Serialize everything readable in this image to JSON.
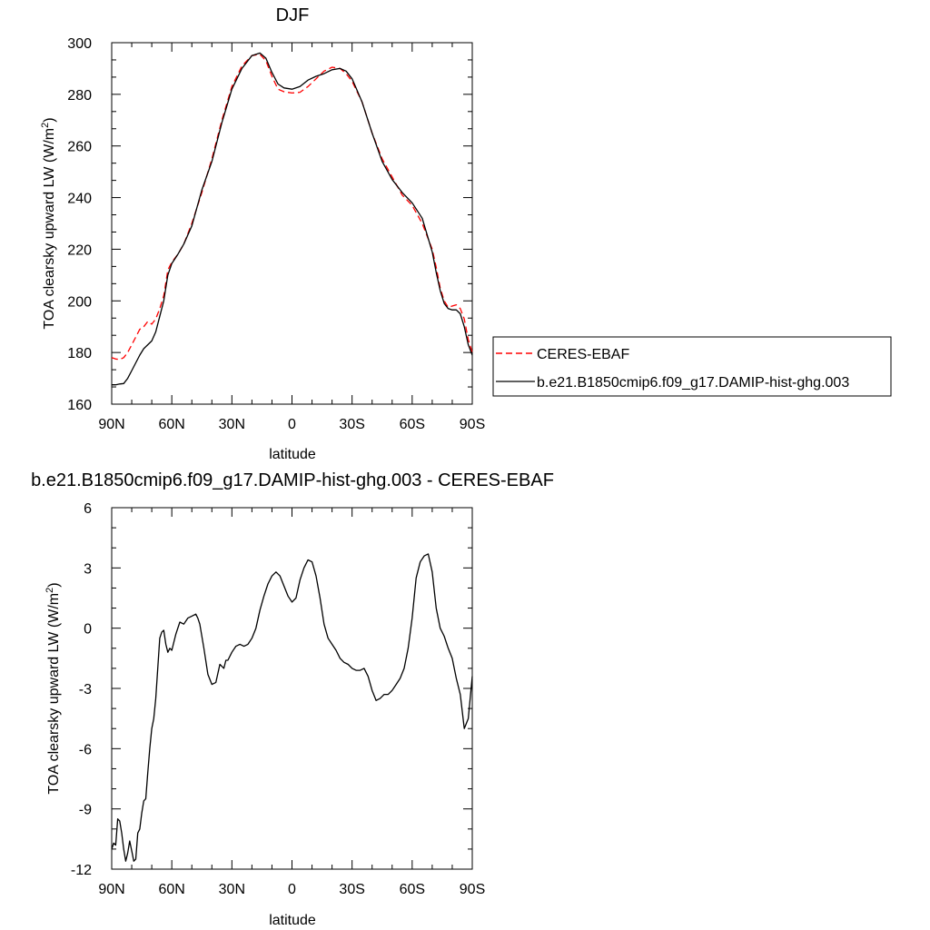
{
  "chart_data": [
    {
      "type": "line",
      "title": "DJF",
      "xlabel": "latitude",
      "ylabel": "TOA clearsky upward LW (W/m",
      "ylabel_sup": "2",
      "ylabel_tail": ")",
      "xlim": [
        90,
        -90
      ],
      "ylim": [
        160,
        300
      ],
      "xticks": [
        {
          "value": 90,
          "label": "90N"
        },
        {
          "value": 60,
          "label": "60N"
        },
        {
          "value": 30,
          "label": "30N"
        },
        {
          "value": 0,
          "label": "0"
        },
        {
          "value": -30,
          "label": "30S"
        },
        {
          "value": -60,
          "label": "60S"
        },
        {
          "value": -90,
          "label": "90S"
        }
      ],
      "yticks": [
        160,
        180,
        200,
        220,
        240,
        260,
        280,
        300
      ],
      "legend_position": "right",
      "series": [
        {
          "name": "CERES-EBAF",
          "color": "#ff0000",
          "dash": "dashed",
          "x": [
            90,
            88,
            86,
            84,
            82,
            80,
            78,
            76,
            74,
            72,
            70,
            68,
            66,
            64,
            62,
            60,
            57,
            54,
            50,
            45,
            40,
            35,
            30,
            25,
            20,
            16,
            13,
            10,
            7,
            4,
            0,
            -4,
            -8,
            -12,
            -16,
            -20,
            -24,
            -27,
            -30,
            -35,
            -40,
            -45,
            -50,
            -55,
            -60,
            -65,
            -70,
            -72,
            -74,
            -76,
            -78,
            -80,
            -82,
            -84,
            -86,
            -88,
            -90
          ],
          "y": [
            178,
            177.5,
            177.3,
            178,
            180,
            183,
            186,
            189,
            190,
            192,
            191,
            193,
            197,
            202,
            212,
            215,
            218,
            222,
            230,
            242,
            255,
            270,
            283,
            291,
            295,
            295.5,
            293,
            287,
            282,
            281,
            280.5,
            280.8,
            283,
            286,
            289,
            290.5,
            290,
            288,
            285,
            277,
            265,
            255,
            248,
            241,
            237,
            230,
            220,
            213,
            205,
            200,
            197.5,
            198,
            198.5,
            197,
            193,
            185,
            180
          ]
        },
        {
          "name": "b.e21.B1850cmip6.f09_g17.DAMIP-hist-ghg.003",
          "color": "#000000",
          "dash": "solid",
          "x": [
            90,
            88,
            86,
            84,
            82,
            80,
            78,
            76,
            74,
            72,
            70,
            68,
            66,
            64,
            62,
            60,
            57,
            54,
            50,
            45,
            40,
            35,
            30,
            25,
            20,
            16,
            13,
            10,
            7,
            4,
            0,
            -4,
            -8,
            -12,
            -16,
            -20,
            -24,
            -27,
            -30,
            -35,
            -40,
            -45,
            -50,
            -55,
            -60,
            -65,
            -70,
            -72,
            -74,
            -76,
            -78,
            -80,
            -82,
            -84,
            -86,
            -88,
            -90
          ],
          "y": [
            167.5,
            167.5,
            167.8,
            168,
            170,
            173,
            176,
            179,
            181.5,
            183,
            184.5,
            188,
            194,
            200,
            210,
            214.5,
            218,
            222,
            229,
            243,
            254,
            269,
            282,
            290,
            295,
            296,
            294,
            288.5,
            284,
            282.5,
            282,
            283,
            285.5,
            287,
            288,
            289.5,
            290,
            289,
            286,
            277,
            265,
            254,
            247,
            242,
            238,
            232,
            219,
            211,
            204,
            199,
            197,
            196.5,
            196.5,
            195,
            190,
            183,
            179
          ]
        }
      ]
    },
    {
      "type": "line",
      "title": "b.e21.B1850cmip6.f09_g17.DAMIP-hist-ghg.003 - CERES-EBAF",
      "xlabel": "latitude",
      "ylabel": "TOA clearsky upward LW (W/m",
      "ylabel_sup": "2",
      "ylabel_tail": ")",
      "xlim": [
        90,
        -90
      ],
      "ylim": [
        -12,
        6
      ],
      "xticks": [
        {
          "value": 90,
          "label": "90N"
        },
        {
          "value": 60,
          "label": "60N"
        },
        {
          "value": 30,
          "label": "30N"
        },
        {
          "value": 0,
          "label": "0"
        },
        {
          "value": -30,
          "label": "30S"
        },
        {
          "value": -60,
          "label": "60S"
        },
        {
          "value": -90,
          "label": "90S"
        }
      ],
      "yticks": [
        -12,
        -9,
        -6,
        -3,
        0,
        3,
        6
      ],
      "series": [
        {
          "name": "",
          "color": "#000000",
          "dash": "solid",
          "x": [
            90,
            89,
            88,
            87,
            86,
            85,
            84,
            83,
            82,
            81,
            80,
            79,
            78,
            77,
            76,
            75,
            74,
            73,
            72,
            71,
            70,
            69,
            68,
            67,
            66,
            65,
            64,
            63,
            62,
            61,
            60,
            58,
            56,
            54,
            52,
            50,
            48,
            47,
            46,
            44,
            42,
            40,
            38,
            36,
            35,
            34,
            33,
            32,
            30,
            28,
            26,
            24,
            22,
            20,
            18,
            16,
            14,
            12,
            10,
            8,
            6,
            4,
            2,
            0,
            -2,
            -4,
            -6,
            -8,
            -10,
            -12,
            -14,
            -16,
            -18,
            -20,
            -22,
            -24,
            -26,
            -28,
            -30,
            -32,
            -34,
            -36,
            -38,
            -40,
            -42,
            -44,
            -46,
            -48,
            -50,
            -52,
            -54,
            -56,
            -58,
            -60,
            -62,
            -64,
            -66,
            -68,
            -70,
            -72,
            -74,
            -76,
            -78,
            -80,
            -82,
            -84,
            -86,
            -88,
            -90
          ],
          "y": [
            -11,
            -10.7,
            -10.8,
            -9.5,
            -9.6,
            -10.2,
            -11,
            -11.6,
            -11.2,
            -10.6,
            -11.1,
            -11.6,
            -11.5,
            -10.2,
            -10,
            -9.2,
            -8.6,
            -8.5,
            -7.2,
            -6,
            -5,
            -4.5,
            -3.5,
            -2,
            -0.5,
            -0.2,
            -0.1,
            -0.8,
            -1.2,
            -1,
            -1.1,
            -0.3,
            0.3,
            0.2,
            0.5,
            0.6,
            0.7,
            0.5,
            0.2,
            -1,
            -2.3,
            -2.8,
            -2.7,
            -1.8,
            -1.9,
            -2,
            -1.6,
            -1.6,
            -1.2,
            -0.9,
            -0.8,
            -0.9,
            -0.8,
            -0.5,
            0,
            0.9,
            1.6,
            2.2,
            2.6,
            2.8,
            2.6,
            2.1,
            1.6,
            1.3,
            1.5,
            2.4,
            3,
            3.4,
            3.3,
            2.6,
            1.5,
            0.2,
            -0.5,
            -0.8,
            -1.1,
            -1.5,
            -1.7,
            -1.8,
            -2,
            -2.1,
            -2.1,
            -2,
            -2.4,
            -3.1,
            -3.6,
            -3.5,
            -3.3,
            -3.3,
            -3.1,
            -2.8,
            -2.5,
            -2,
            -1,
            0.5,
            2.5,
            3.3,
            3.6,
            3.7,
            2.8,
            1,
            0,
            -0.4,
            -1,
            -1.5,
            -2.5,
            -3.3,
            -5,
            -4.5,
            -2.4
          ]
        }
      ]
    }
  ]
}
